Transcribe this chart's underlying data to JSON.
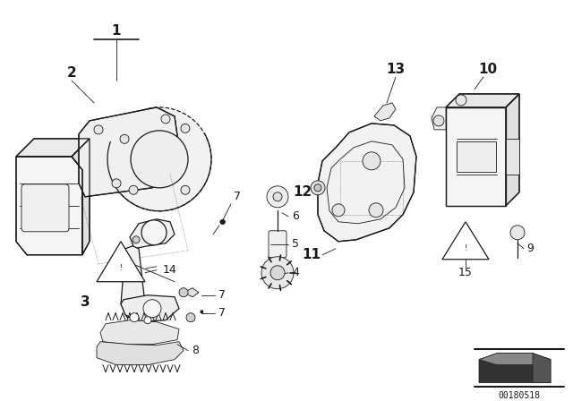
{
  "background_color": "#ffffff",
  "line_color": "#1a1a1a",
  "fig_width": 6.4,
  "fig_height": 4.48,
  "dpi": 100,
  "watermark": "00180518"
}
